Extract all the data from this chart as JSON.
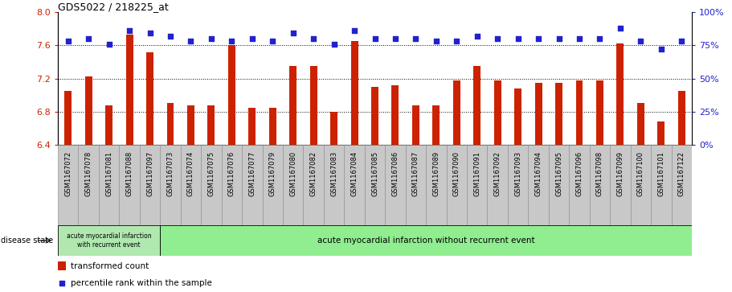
{
  "title": "GDS5022 / 218225_at",
  "samples": [
    "GSM1167072",
    "GSM1167078",
    "GSM1167081",
    "GSM1167088",
    "GSM1167097",
    "GSM1167073",
    "GSM1167074",
    "GSM1167075",
    "GSM1167076",
    "GSM1167077",
    "GSM1167079",
    "GSM1167080",
    "GSM1167082",
    "GSM1167083",
    "GSM1167084",
    "GSM1167085",
    "GSM1167086",
    "GSM1167087",
    "GSM1167089",
    "GSM1167090",
    "GSM1167091",
    "GSM1167092",
    "GSM1167093",
    "GSM1167094",
    "GSM1167095",
    "GSM1167096",
    "GSM1167098",
    "GSM1167099",
    "GSM1167100",
    "GSM1167101",
    "GSM1167122"
  ],
  "bar_values": [
    7.05,
    7.22,
    6.88,
    7.73,
    7.52,
    6.9,
    6.88,
    6.88,
    7.6,
    6.85,
    6.85,
    7.35,
    7.35,
    6.8,
    7.65,
    7.1,
    7.12,
    6.88,
    6.88,
    7.18,
    7.35,
    7.18,
    7.08,
    7.15,
    7.15,
    7.18,
    7.18,
    7.62,
    6.9,
    6.68,
    7.05
  ],
  "percentile_values": [
    78,
    80,
    76,
    86,
    84,
    82,
    78,
    80,
    78,
    80,
    78,
    84,
    80,
    76,
    86,
    80,
    80,
    80,
    78,
    78,
    82,
    80,
    80,
    80,
    80,
    80,
    80,
    88,
    78,
    72,
    78
  ],
  "bar_color": "#cc2200",
  "dot_color": "#2222cc",
  "ylim_left": [
    6.4,
    8.0
  ],
  "ylim_right": [
    0,
    100
  ],
  "yticks_left": [
    6.4,
    6.8,
    7.2,
    7.6,
    8.0
  ],
  "yticks_right": [
    0,
    25,
    50,
    75,
    100
  ],
  "grid_values": [
    6.8,
    7.2,
    7.6
  ],
  "disease_group1_label": "acute myocardial infarction\nwith recurrent event",
  "disease_group2_label": "acute myocardial infarction without recurrent event",
  "disease_group1_count": 5,
  "disease_state_label": "disease state",
  "legend_bar_label": "transformed count",
  "legend_dot_label": "percentile rank within the sample",
  "group1_color": "#b0e8b0",
  "group2_color": "#90ee90",
  "tick_label_bg": "#c8c8c8",
  "plot_bg": "#ffffff"
}
